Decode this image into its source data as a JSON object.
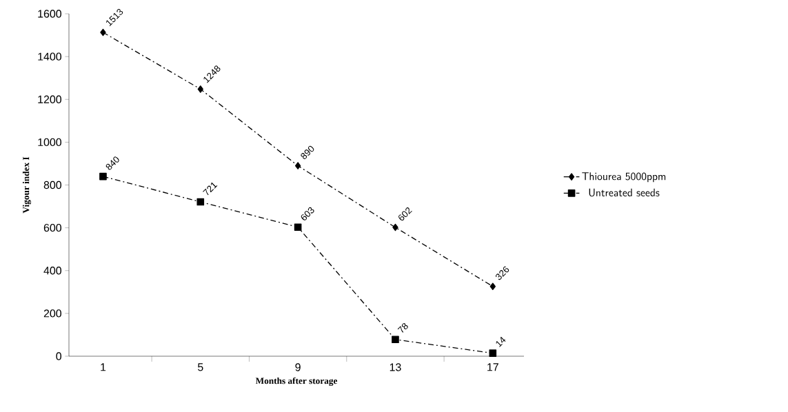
{
  "chart_data": {
    "type": "line",
    "xlabel": "Months after storage",
    "ylabel": "Vigour index I",
    "categories": [
      "1",
      "5",
      "9",
      "13",
      "17"
    ],
    "series": [
      {
        "name": "Thiourea 5000ppm",
        "color": "#000000",
        "marker": "diamond",
        "line_style": "dashed",
        "values": [
          1513,
          1248,
          890,
          602,
          326
        ]
      },
      {
        "name": "Untreated seeds",
        "color": "#000000",
        "marker": "square",
        "line_style": "dashed",
        "values": [
          840,
          721,
          603,
          78,
          14
        ]
      }
    ],
    "ylim": [
      0,
      1600
    ],
    "yticks": [
      0,
      200,
      400,
      600,
      800,
      1000,
      1200,
      1400,
      1600
    ],
    "data_labels": true,
    "legend": "right",
    "grid": false
  }
}
